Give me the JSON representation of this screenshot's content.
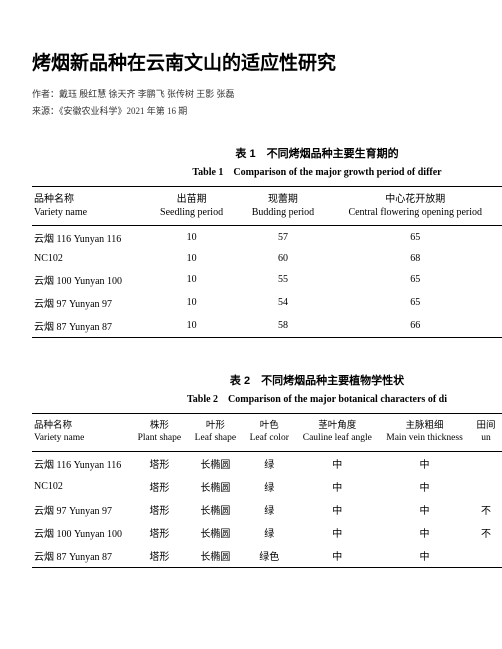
{
  "title": "烤烟新品种在云南文山的适应性研究",
  "authors_label": "作者：戴珏 殷红慧 徐天齐 李鹏飞 张传树 王影 张磊",
  "source_label": "来源：《安徽农业科学》2021 年第 16 期",
  "table1": {
    "caption_cn": "表 1　不同烤烟品种主要生育期的",
    "caption_en": "Table 1　Comparison of the major growth period of differ",
    "headers": [
      {
        "cn": "品种名称",
        "en": "Variety name"
      },
      {
        "cn": "出苗期",
        "en": "Seedling period"
      },
      {
        "cn": "现蕾期",
        "en": "Budding period"
      },
      {
        "cn": "中心花开放期",
        "en": "Central flowering opening period"
      }
    ],
    "rows": [
      {
        "name": "云烟 116 Yunyan 116",
        "c1": "10",
        "c2": "57",
        "c3": "65"
      },
      {
        "name": "NC102",
        "c1": "10",
        "c2": "60",
        "c3": "68"
      },
      {
        "name": "云烟 100 Yunyan 100",
        "c1": "10",
        "c2": "55",
        "c3": "65"
      },
      {
        "name": "云烟 97 Yunyan 97",
        "c1": "10",
        "c2": "54",
        "c3": "65"
      },
      {
        "name": "云烟 87 Yunyan 87",
        "c1": "10",
        "c2": "58",
        "c3": "66"
      }
    ]
  },
  "table2": {
    "caption_cn": "表 2　不同烤烟品种主要植物学性状",
    "caption_en": "Table 2　Comparison of the major botanical characters of di",
    "headers": [
      {
        "cn": "品种名称",
        "en": "Variety name"
      },
      {
        "cn": "株形",
        "en": "Plant shape"
      },
      {
        "cn": "叶形",
        "en": "Leaf shape"
      },
      {
        "cn": "叶色",
        "en": "Leaf color"
      },
      {
        "cn": "茎叶角度",
        "en": "Cauline leaf angle"
      },
      {
        "cn": "主脉粗细",
        "en": "Main vein thickness"
      },
      {
        "cn": "田间",
        "en": "un"
      }
    ],
    "rows": [
      {
        "name": "云烟 116 Yunyan 116",
        "c1": "塔形",
        "c2": "长椭圆",
        "c3": "绿",
        "c4": "中",
        "c5": "中",
        "c6": ""
      },
      {
        "name": "NC102",
        "c1": "塔形",
        "c2": "长椭圆",
        "c3": "绿",
        "c4": "中",
        "c5": "中",
        "c6": ""
      },
      {
        "name": "云烟 97 Yunyan 97",
        "c1": "塔形",
        "c2": "长椭圆",
        "c3": "绿",
        "c4": "中",
        "c5": "中",
        "c6": "不"
      },
      {
        "name": "云烟 100 Yunyan 100",
        "c1": "塔形",
        "c2": "长椭圆",
        "c3": "绿",
        "c4": "中",
        "c5": "中",
        "c6": "不"
      },
      {
        "name": "云烟 87 Yunyan 87",
        "c1": "塔形",
        "c2": "长椭圆",
        "c3": "绿色",
        "c4": "中",
        "c5": "中",
        "c6": ""
      }
    ]
  }
}
